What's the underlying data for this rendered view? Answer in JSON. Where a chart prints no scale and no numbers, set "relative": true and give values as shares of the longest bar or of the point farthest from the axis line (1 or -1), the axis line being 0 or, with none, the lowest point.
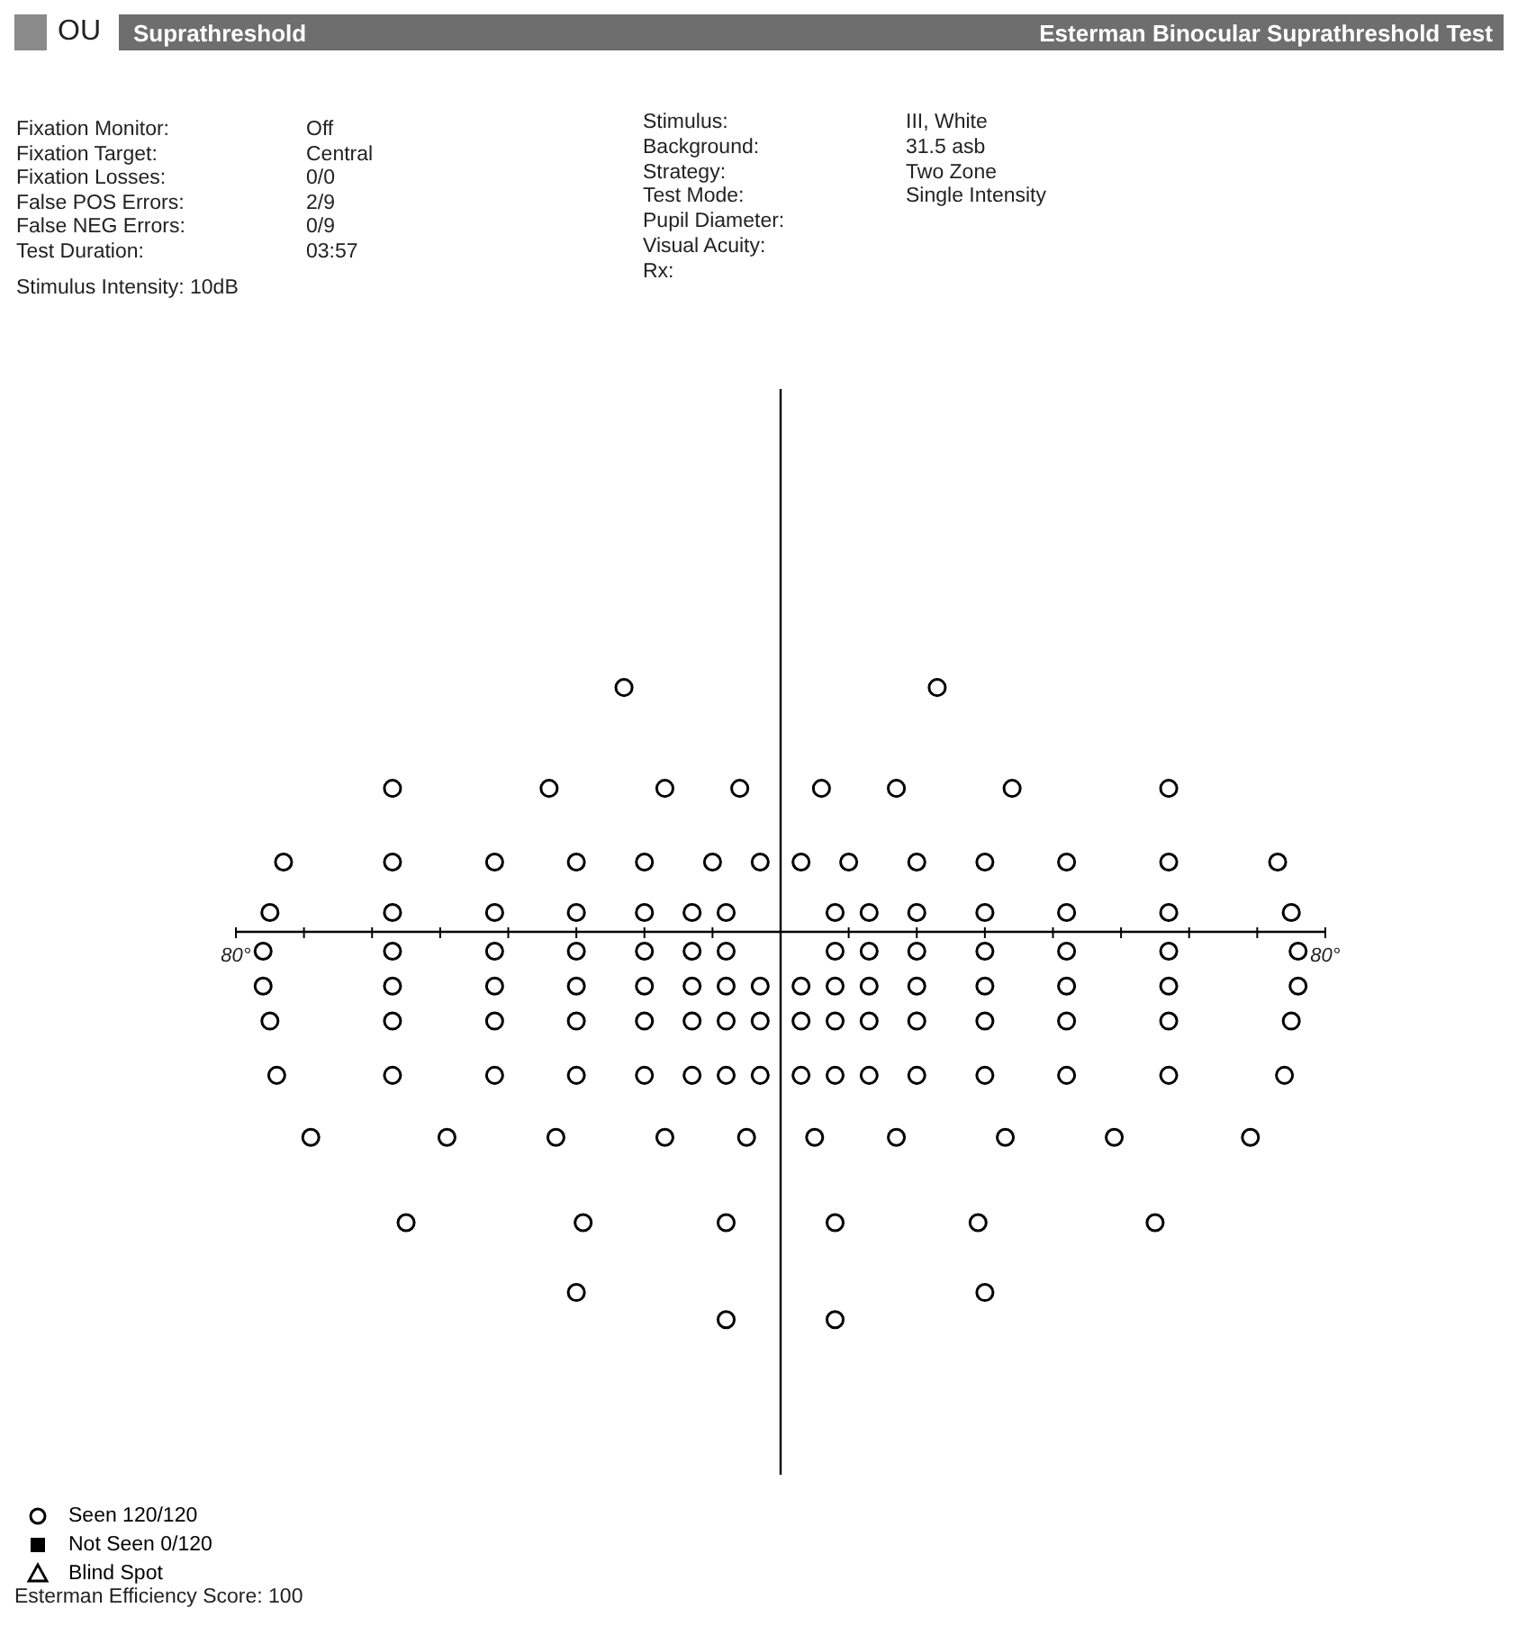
{
  "chart_data": {
    "type": "scatter",
    "title": "Esterman Binocular Suprathreshold Test",
    "subtitle": "Suprathreshold",
    "annotations": [
      "OU",
      "Fixation Monitor:",
      "Fixation Target:",
      "Fixation Losses:",
      "False POS Errors:",
      "False NEG Errors:",
      "Test Duration:",
      "Off",
      "Central",
      "0/0",
      "2/9",
      "0/9",
      "03:57",
      "Stimulus Intensity: 10dB",
      "Stimulus:",
      "Background:",
      "Strategy:",
      "Test Mode:",
      "Pupil Diameter:",
      "Visual Acuity:",
      "Rx:",
      "III, White",
      "31.5 asb",
      "Two Zone",
      "Single Intensity",
      "Esterman Efficiency Score: 100"
    ],
    "relative": true,
    "xlim": [
      -80,
      80
    ],
    "xticks": [
      {
        "value": -80,
        "label": "80°"
      },
      {
        "value": -70,
        "label": null
      },
      {
        "value": -60,
        "label": null
      },
      {
        "value": -50,
        "label": null
      },
      {
        "value": -40,
        "label": null
      },
      {
        "value": -30,
        "label": null
      },
      {
        "value": -20,
        "label": null
      },
      {
        "value": -10,
        "label": null
      },
      {
        "value": 0,
        "label": null
      },
      {
        "value": 10,
        "label": null
      },
      {
        "value": 20,
        "label": null
      },
      {
        "value": 30,
        "label": null
      },
      {
        "value": 40,
        "label": null
      },
      {
        "value": 50,
        "label": null
      },
      {
        "value": 60,
        "label": null
      },
      {
        "value": 70,
        "label": null
      },
      {
        "value": 80,
        "label": "80°"
      }
    ],
    "ref_lines": [
      {
        "axis": "x",
        "value": 0,
        "color": "#000000"
      }
    ],
    "legend": "bottom left",
    "series": [
      {
        "name": "Seen 120/120",
        "color": "#000000",
        "marker": "circle",
        "x": [
          -23,
          23,
          -57,
          -34,
          -17,
          -6,
          6,
          17,
          34,
          57,
          -73,
          -57,
          -42,
          -30,
          -20,
          -10,
          -3,
          3,
          10,
          20,
          30,
          42,
          57,
          73,
          -75,
          -57,
          -42,
          -30,
          -20,
          -13,
          -8,
          8,
          13,
          20,
          30,
          42,
          57,
          75,
          -76,
          -57,
          -42,
          -30,
          -20,
          -13,
          -8,
          8,
          13,
          20,
          30,
          42,
          57,
          76,
          -76,
          -57,
          -42,
          -30,
          -20,
          -13,
          -8,
          -3,
          3,
          8,
          13,
          20,
          30,
          42,
          57,
          76,
          -75,
          -57,
          -42,
          -30,
          -20,
          -13,
          -8,
          -3,
          3,
          8,
          13,
          20,
          30,
          42,
          57,
          75,
          -74,
          -57,
          -42,
          -30,
          -20,
          -13,
          -8,
          -3,
          3,
          8,
          13,
          20,
          30,
          42,
          57,
          74,
          -69,
          -49,
          -33,
          -17,
          -5,
          5,
          17,
          33,
          49,
          69,
          -55,
          -29,
          -8,
          8,
          29,
          55,
          -30,
          30,
          -8,
          8
        ],
        "values": [
          0.63,
          0.63,
          0.37,
          0.37,
          0.37,
          0.37,
          0.37,
          0.37,
          0.37,
          0.37,
          0.18,
          0.18,
          0.18,
          0.18,
          0.18,
          0.18,
          0.18,
          0.18,
          0.18,
          0.18,
          0.18,
          0.18,
          0.18,
          0.18,
          0.05,
          0.05,
          0.05,
          0.05,
          0.05,
          0.05,
          0.05,
          0.05,
          0.05,
          0.05,
          0.05,
          0.05,
          0.05,
          0.05,
          -0.05,
          -0.05,
          -0.05,
          -0.05,
          -0.05,
          -0.05,
          -0.05,
          -0.05,
          -0.05,
          -0.05,
          -0.05,
          -0.05,
          -0.05,
          -0.05,
          -0.14,
          -0.14,
          -0.14,
          -0.14,
          -0.14,
          -0.14,
          -0.14,
          -0.14,
          -0.14,
          -0.14,
          -0.14,
          -0.14,
          -0.14,
          -0.14,
          -0.14,
          -0.14,
          -0.23,
          -0.23,
          -0.23,
          -0.23,
          -0.23,
          -0.23,
          -0.23,
          -0.23,
          -0.23,
          -0.23,
          -0.23,
          -0.23,
          -0.23,
          -0.23,
          -0.23,
          -0.23,
          -0.37,
          -0.37,
          -0.37,
          -0.37,
          -0.37,
          -0.37,
          -0.37,
          -0.37,
          -0.37,
          -0.37,
          -0.37,
          -0.37,
          -0.37,
          -0.37,
          -0.37,
          -0.37,
          -0.53,
          -0.53,
          -0.53,
          -0.53,
          -0.53,
          -0.53,
          -0.53,
          -0.53,
          -0.53,
          -0.53,
          -0.75,
          -0.75,
          -0.75,
          -0.75,
          -0.75,
          -0.75,
          -0.93,
          -0.93,
          -1,
          -1
        ]
      },
      {
        "name": "Not Seen 0/120",
        "color": "#000000",
        "marker": "square"
      },
      {
        "name": "Blind Spot",
        "color": "#000000",
        "marker": "triangle"
      }
    ]
  }
}
